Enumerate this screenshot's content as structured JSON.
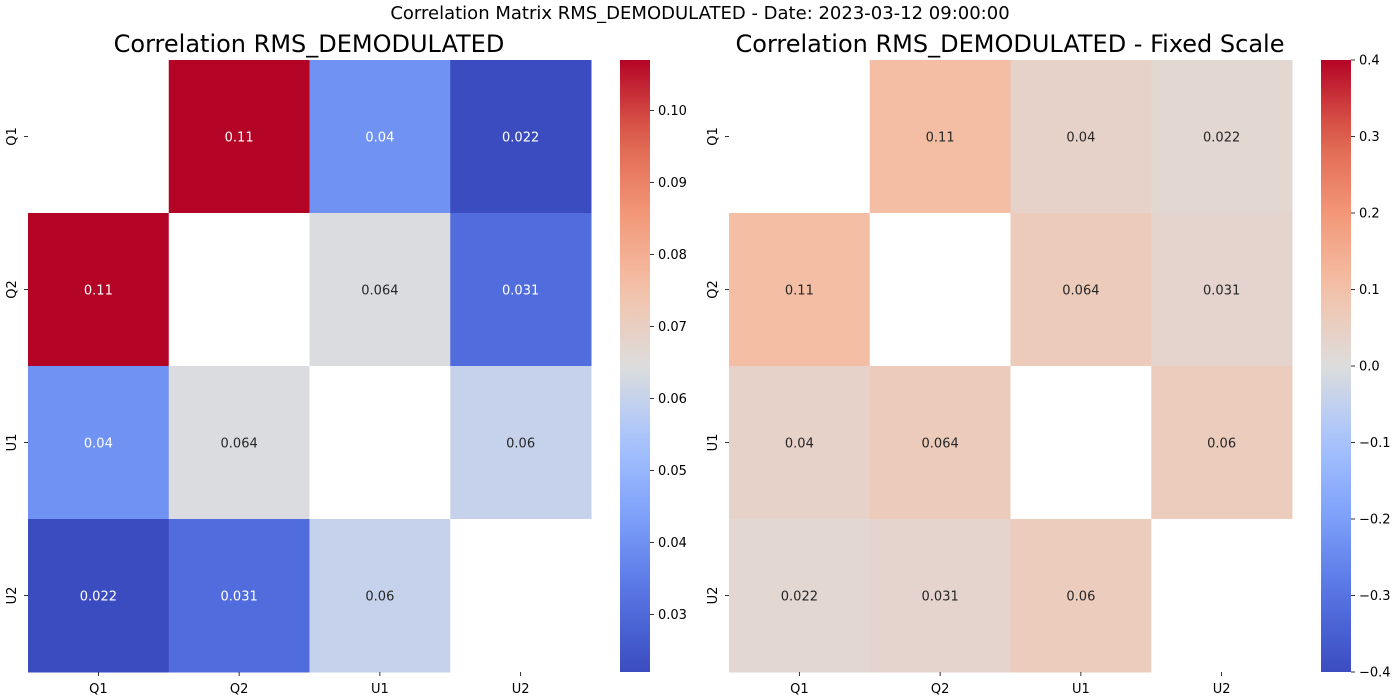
{
  "figure": {
    "suptitle": "Correlation Matrix RMS_DEMODULATED - Date: 2023-03-12 09:00:00"
  },
  "chart_data": [
    {
      "type": "heatmap",
      "title": "Correlation RMS_DEMODULATED",
      "xlabel": "",
      "ylabel": "",
      "x_categories": [
        "Q1",
        "Q2",
        "U1",
        "U2"
      ],
      "y_categories": [
        "Q1",
        "Q2",
        "U1",
        "U2"
      ],
      "matrix": [
        [
          null,
          0.107,
          0.04,
          0.022
        ],
        [
          0.107,
          null,
          0.064,
          0.031
        ],
        [
          0.04,
          0.064,
          null,
          0.06
        ],
        [
          0.022,
          0.031,
          0.06,
          null
        ]
      ],
      "annotations": [
        [
          "",
          "0.11",
          "0.04",
          "0.022"
        ],
        [
          "0.11",
          "",
          "0.064",
          "0.031"
        ],
        [
          "0.04",
          "0.064",
          "",
          "0.06"
        ],
        [
          "0.022",
          "0.031",
          "0.06",
          ""
        ]
      ],
      "colormap": "coolwarm",
      "vmin": 0.022,
      "vmax": 0.107,
      "colorbar_ticks": [
        0.03,
        0.04,
        0.05,
        0.06,
        0.07,
        0.08,
        0.09,
        0.1
      ],
      "colorbar_tick_labels": [
        "0.03",
        "0.04",
        "0.05",
        "0.06",
        "0.07",
        "0.08",
        "0.09",
        "0.10"
      ]
    },
    {
      "type": "heatmap",
      "title": "Correlation RMS_DEMODULATED - Fixed Scale",
      "xlabel": "",
      "ylabel": "",
      "x_categories": [
        "Q1",
        "Q2",
        "U1",
        "U2"
      ],
      "y_categories": [
        "Q1",
        "Q2",
        "U1",
        "U2"
      ],
      "matrix": [
        [
          null,
          0.107,
          0.04,
          0.022
        ],
        [
          0.107,
          null,
          0.064,
          0.031
        ],
        [
          0.04,
          0.064,
          null,
          0.06
        ],
        [
          0.022,
          0.031,
          0.06,
          null
        ]
      ],
      "annotations": [
        [
          "",
          "0.11",
          "0.04",
          "0.022"
        ],
        [
          "0.11",
          "",
          "0.064",
          "0.031"
        ],
        [
          "0.04",
          "0.064",
          "",
          "0.06"
        ],
        [
          "0.022",
          "0.031",
          "0.06",
          ""
        ]
      ],
      "colormap": "coolwarm",
      "vmin": -0.4,
      "vmax": 0.4,
      "colorbar_ticks": [
        -0.4,
        -0.3,
        -0.2,
        -0.1,
        0.0,
        0.1,
        0.2,
        0.3,
        0.4
      ],
      "colorbar_tick_labels": [
        "−0.4",
        "−0.3",
        "−0.2",
        "−0.1",
        "0.0",
        "0.1",
        "0.2",
        "0.3",
        "0.4"
      ]
    }
  ]
}
